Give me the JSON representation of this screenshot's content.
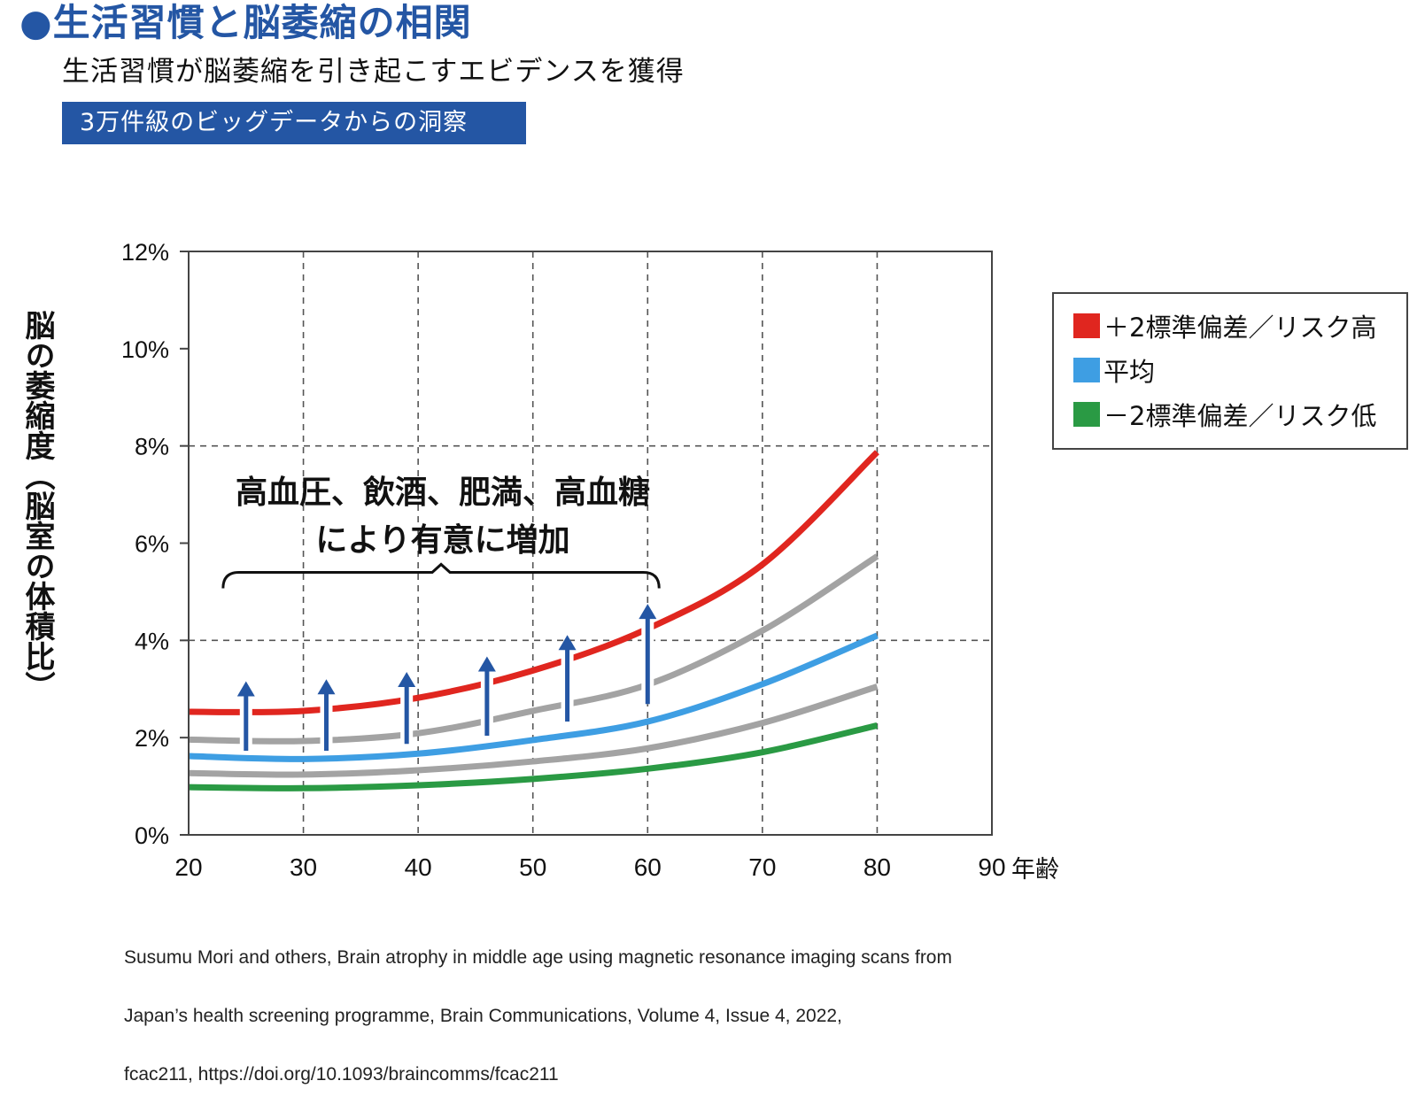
{
  "header": {
    "title": "●生活習慣と脳萎縮の相関",
    "subtitle": "生活習慣が脳萎縮を引き起こすエビデンスを獲得",
    "tag": "3万件級のビッグデータからの洞察"
  },
  "annotation": {
    "line1": "高血圧、飲酒、肥満、高血糖",
    "line2": "により有意に増加"
  },
  "footnote": {
    "line1": "Susumu Mori and others, Brain atrophy in middle age using magnetic resonance imaging scans from",
    "line2": "Japan’s health screening programme, Brain Communications, Volume 4, Issue 4, 2022,",
    "line3": "fcac211, https://doi.org/10.1093/braincomms/fcac211"
  },
  "chart_data": {
    "type": "line",
    "title": "",
    "xlabel": "年齢",
    "ylabel": "脳の萎縮度（脳室の体積比）",
    "xlim": [
      20,
      90
    ],
    "ylim": [
      0,
      12
    ],
    "x_ticks": [
      20,
      30,
      40,
      50,
      60,
      70,
      80,
      90
    ],
    "y_ticks": [
      0,
      2,
      4,
      6,
      8,
      10,
      12
    ],
    "y_tick_labels": [
      "0%",
      "2%",
      "4%",
      "6%",
      "8%",
      "10%",
      "12%"
    ],
    "grid": {
      "x_dashed_at": [
        30,
        40,
        50,
        60,
        70,
        80
      ],
      "y_dashed_at": [
        4,
        8
      ]
    },
    "legend_position": "right",
    "x": [
      20,
      30,
      40,
      50,
      60,
      70,
      80
    ],
    "series": [
      {
        "name": "＋2標準偏差／リスク高",
        "color": "#e0261f",
        "in_legend": true,
        "values": [
          2.53,
          2.55,
          2.82,
          3.38,
          4.24,
          5.56,
          7.87
        ]
      },
      {
        "name": "+1SD (gray)",
        "color": "#a3a3a3",
        "in_legend": false,
        "values": [
          1.96,
          1.93,
          2.09,
          2.55,
          3.09,
          4.2,
          5.73
        ]
      },
      {
        "name": "平均",
        "color": "#3e9ee3",
        "in_legend": true,
        "values": [
          1.62,
          1.56,
          1.67,
          1.95,
          2.33,
          3.1,
          4.1
        ]
      },
      {
        "name": "-1SD (gray)",
        "color": "#a3a3a3",
        "in_legend": false,
        "values": [
          1.27,
          1.24,
          1.33,
          1.51,
          1.78,
          2.3,
          3.05
        ]
      },
      {
        "name": "－2標準偏差／リスク低",
        "color": "#2a9a44",
        "in_legend": true,
        "values": [
          0.98,
          0.96,
          1.02,
          1.15,
          1.36,
          1.7,
          2.25
        ]
      }
    ],
    "legend": [
      {
        "label": "＋2標準偏差／リスク高",
        "color": "#e0261f"
      },
      {
        "label": "平均",
        "color": "#3e9ee3"
      },
      {
        "label": "－2標準偏差／リスク低",
        "color": "#2a9a44"
      }
    ],
    "arrows": {
      "color": "#2456a4",
      "items": [
        {
          "x": 25,
          "from": 1.73,
          "to": 3.16
        },
        {
          "x": 32,
          "from": 1.73,
          "to": 3.2
        },
        {
          "x": 39,
          "from": 1.87,
          "to": 3.35
        },
        {
          "x": 46,
          "from": 2.04,
          "to": 3.67
        },
        {
          "x": 53,
          "from": 2.33,
          "to": 4.11
        },
        {
          "x": 60,
          "from": 2.69,
          "to": 4.75
        }
      ]
    },
    "brace": {
      "x_start": 23,
      "x_end": 61,
      "y": 5.4
    }
  }
}
